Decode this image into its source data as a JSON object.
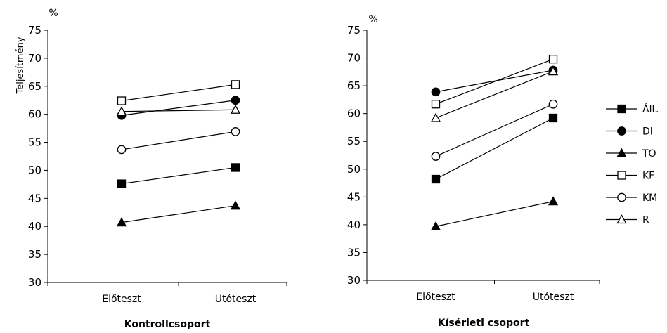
{
  "chart_data": [
    {
      "type": "line",
      "title": "Kontrollcsoport",
      "ylabel": "Teljesítmény",
      "unit": "%",
      "categories": [
        "Előteszt",
        "Utóteszt"
      ],
      "ylim": [
        30,
        75
      ],
      "yticks": [
        30,
        35,
        40,
        45,
        50,
        55,
        60,
        65,
        70,
        75
      ],
      "series": [
        {
          "name": "Ált.",
          "marker": "filled-square",
          "values": [
            47.6,
            50.5
          ]
        },
        {
          "name": "DI",
          "marker": "filled-circle",
          "values": [
            59.8,
            62.5
          ]
        },
        {
          "name": "TO",
          "marker": "filled-triangle",
          "values": [
            40.7,
            43.7
          ]
        },
        {
          "name": "KF",
          "marker": "open-square",
          "values": [
            62.4,
            65.3
          ]
        },
        {
          "name": "KM",
          "marker": "open-circle",
          "values": [
            53.7,
            56.9
          ]
        },
        {
          "name": "R",
          "marker": "open-triangle",
          "values": [
            60.5,
            60.8
          ]
        }
      ]
    },
    {
      "type": "line",
      "title": "Kísérleti csoport",
      "ylabel": "",
      "unit": "%",
      "categories": [
        "Előteszt",
        "Utóteszt"
      ],
      "ylim": [
        30,
        75
      ],
      "yticks": [
        30,
        35,
        40,
        45,
        50,
        55,
        60,
        65,
        70,
        75
      ],
      "series": [
        {
          "name": "Ált.",
          "marker": "filled-square",
          "values": [
            48.2,
            59.2
          ]
        },
        {
          "name": "DI",
          "marker": "filled-circle",
          "values": [
            63.9,
            67.8
          ]
        },
        {
          "name": "TO",
          "marker": "filled-triangle",
          "values": [
            39.7,
            44.2
          ]
        },
        {
          "name": "KF",
          "marker": "open-square",
          "values": [
            61.7,
            69.8
          ]
        },
        {
          "name": "KM",
          "marker": "open-circle",
          "values": [
            52.3,
            61.7
          ]
        },
        {
          "name": "R",
          "marker": "open-triangle",
          "values": [
            59.2,
            67.6
          ]
        }
      ]
    }
  ],
  "legend": {
    "placement": "right",
    "items": [
      {
        "label": "Ált.",
        "marker": "filled-square"
      },
      {
        "label": "DI",
        "marker": "filled-circle"
      },
      {
        "label": "TO",
        "marker": "filled-triangle"
      },
      {
        "label": "KF",
        "marker": "open-square"
      },
      {
        "label": "KM",
        "marker": "open-circle"
      },
      {
        "label": "R",
        "marker": "open-triangle"
      }
    ]
  },
  "colors": {
    "line": "#000000",
    "background": "#ffffff"
  }
}
